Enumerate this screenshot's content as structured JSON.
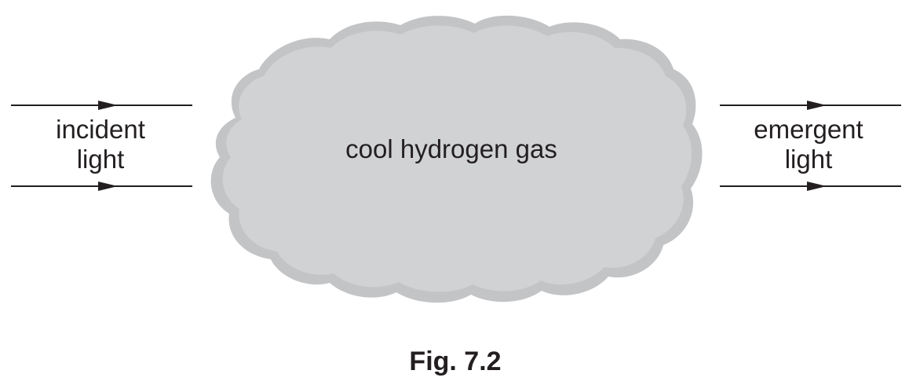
{
  "figure": {
    "incident_label": [
      "incident",
      "light"
    ],
    "gas_label": "cool hydrogen gas",
    "emergent_label": [
      "emergent",
      "light"
    ],
    "caption": "Fig. 7.2"
  },
  "colors": {
    "cloud_fill": "#d1d2d4",
    "cloud_edge": "#c3c4c6",
    "line": "#231f20"
  }
}
